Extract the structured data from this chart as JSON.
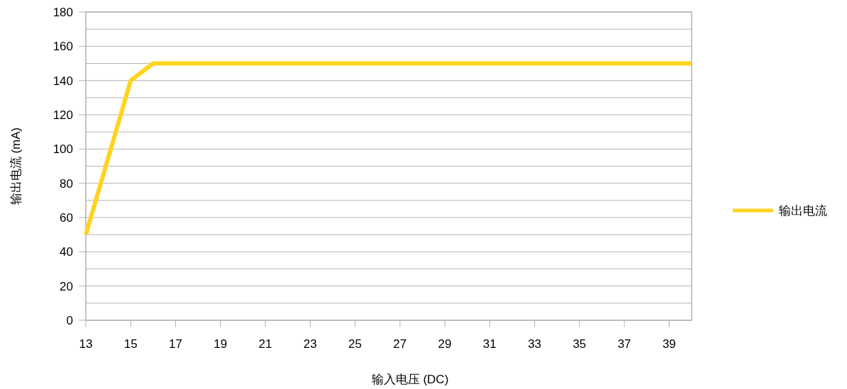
{
  "chart_data": {
    "type": "line",
    "xlabel": "输入电压  (DC)",
    "ylabel": "输出电流  (mA)",
    "x": [
      13,
      15,
      16,
      40
    ],
    "series": [
      {
        "name": "输出电流",
        "color": "#ffd320",
        "values": [
          50,
          140,
          150,
          150
        ]
      }
    ],
    "xlim": [
      13,
      40
    ],
    "xticks": [
      13,
      15,
      17,
      19,
      21,
      23,
      25,
      27,
      29,
      31,
      33,
      35,
      37,
      39
    ],
    "ylim": [
      0,
      180
    ],
    "yticks": [
      0,
      {
        "value": 10,
        "label": null
      },
      20,
      {
        "value": 30,
        "label": null
      },
      40,
      {
        "value": 50,
        "label": null
      },
      60,
      {
        "value": 70,
        "label": null
      },
      80,
      {
        "value": 90,
        "label": null
      },
      100,
      {
        "value": 110,
        "label": null
      },
      120,
      {
        "value": 130,
        "label": null
      },
      140,
      {
        "value": 150,
        "label": null
      },
      160,
      {
        "value": 170,
        "label": null
      },
      180
    ],
    "grid": "y",
    "legend": "right",
    "marker": "none",
    "line_style": "solid"
  }
}
